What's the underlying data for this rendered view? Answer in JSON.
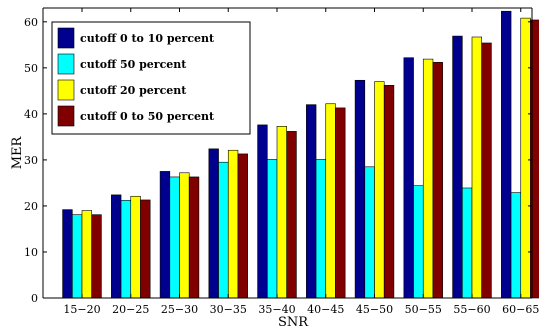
{
  "chart_data": {
    "type": "bar",
    "xlabel": "SNR",
    "ylabel": "MER",
    "ylim": [
      0,
      63
    ],
    "yticks": [
      0,
      10,
      20,
      30,
      40,
      50,
      60
    ],
    "grid": false,
    "legend_position": "top-left",
    "categories": [
      "15−20",
      "20−25",
      "25−30",
      "30−35",
      "35−40",
      "40−45",
      "45−50",
      "50−55",
      "55−60",
      "60−65"
    ],
    "series": [
      {
        "name": "cutoff 0 to 10 percent",
        "color": "#00008f",
        "values": [
          19.2,
          22.4,
          27.5,
          32.4,
          37.6,
          42.0,
          47.3,
          52.2,
          56.9,
          62.3
        ]
      },
      {
        "name": "cutoff 50 percent",
        "color": "#00ffff",
        "values": [
          18.1,
          21.2,
          26.3,
          29.5,
          30.1,
          30.1,
          28.5,
          24.4,
          23.9,
          22.9
        ]
      },
      {
        "name": "cutoff 20 percent",
        "color": "#ffff00",
        "values": [
          19.0,
          22.1,
          27.2,
          32.1,
          37.3,
          42.2,
          47.0,
          51.9,
          56.7,
          60.8
        ]
      },
      {
        "name": "cutoff 0 to 50 percent",
        "color": "#800000",
        "values": [
          18.1,
          21.3,
          26.3,
          31.3,
          36.2,
          41.3,
          46.2,
          51.2,
          55.4,
          60.4
        ]
      }
    ]
  }
}
